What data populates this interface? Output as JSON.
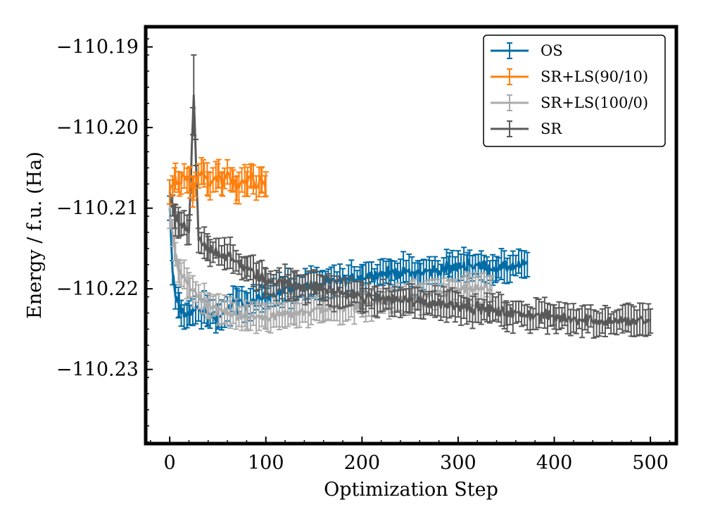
{
  "chart_data": {
    "type": "line",
    "xlabel": "Optimization Step",
    "ylabel": "Energy / f.u. (Ha)",
    "xlim": [
      -25,
      527
    ],
    "ylim": [
      -110.2392,
      -110.1875
    ],
    "xticks": [
      0,
      100,
      200,
      300,
      400,
      500
    ],
    "xtick_labels": [
      "0",
      "100",
      "200",
      "300",
      "400",
      "500"
    ],
    "yticks": [
      -110.19,
      -110.2,
      -110.21,
      -110.22,
      -110.23
    ],
    "ytick_labels": [
      "−110.19",
      "−110.20",
      "−110.21",
      "−110.22",
      "−110.23"
    ],
    "legend_position": "top-right",
    "series": [
      {
        "name": "OS",
        "color": "#006ba4",
        "x": [
          0,
          3,
          6,
          10,
          15,
          20,
          30,
          40,
          50,
          60,
          70,
          80,
          100,
          120,
          150,
          180,
          200,
          230,
          260,
          290,
          310,
          340,
          372
        ],
        "y": [
          -110.21,
          -110.218,
          -110.221,
          -110.222,
          -110.2235,
          -110.223,
          -110.2225,
          -110.223,
          -110.2235,
          -110.2225,
          -110.2215,
          -110.222,
          -110.221,
          -110.22,
          -110.2195,
          -110.219,
          -110.2185,
          -110.218,
          -110.218,
          -110.2175,
          -110.217,
          -110.2175,
          -110.217
        ],
        "err": [
          0.0015,
          0.0015,
          0.0015,
          0.0015,
          0.0015,
          0.0015,
          0.0015,
          0.0015,
          0.0015,
          0.0015,
          0.0015,
          0.0015,
          0.0015,
          0.0015,
          0.0015,
          0.0015,
          0.0015,
          0.0015,
          0.0015,
          0.0015,
          0.0015,
          0.0015,
          0.0015
        ]
      },
      {
        "name": "SR+LS(90/10)",
        "color": "#ff800e",
        "x": [
          0,
          5,
          10,
          15,
          20,
          25,
          30,
          35,
          40,
          45,
          50,
          55,
          60,
          65,
          70,
          75,
          80,
          85,
          90,
          95,
          100
        ],
        "y": [
          -110.208,
          -110.2065,
          -110.207,
          -110.206,
          -110.2065,
          -110.2075,
          -110.206,
          -110.2055,
          -110.207,
          -110.2065,
          -110.206,
          -110.207,
          -110.2055,
          -110.2065,
          -110.2075,
          -110.2065,
          -110.207,
          -110.206,
          -110.2075,
          -110.2065,
          -110.207
        ],
        "err": [
          0.0015,
          0.0015,
          0.0015,
          0.0015,
          0.0015,
          0.0015,
          0.0015,
          0.0015,
          0.0015,
          0.0015,
          0.0015,
          0.0015,
          0.0015,
          0.0015,
          0.0015,
          0.0015,
          0.0015,
          0.0015,
          0.0015,
          0.0015,
          0.0015
        ]
      },
      {
        "name": "SR+LS(100/0)",
        "color": "#ababab",
        "x": [
          0,
          5,
          10,
          20,
          30,
          40,
          60,
          80,
          100,
          130,
          160,
          200,
          230,
          260,
          290,
          310,
          335
        ],
        "y": [
          -110.211,
          -110.215,
          -110.218,
          -110.2195,
          -110.221,
          -110.222,
          -110.223,
          -110.2235,
          -110.2235,
          -110.223,
          -110.2225,
          -110.222,
          -110.2215,
          -110.221,
          -110.2205,
          -110.22,
          -110.22
        ],
        "err": [
          0.0015,
          0.0015,
          0.0015,
          0.0015,
          0.0015,
          0.0015,
          0.0015,
          0.0015,
          0.0015,
          0.0015,
          0.0015,
          0.0015,
          0.0015,
          0.0015,
          0.0015,
          0.0015,
          0.0015
        ]
      },
      {
        "name": "SR",
        "color": "#595959",
        "x": [
          0,
          5,
          10,
          20,
          25,
          30,
          40,
          60,
          80,
          100,
          130,
          160,
          200,
          250,
          300,
          350,
          400,
          450,
          500
        ],
        "y": [
          -110.208,
          -110.211,
          -110.212,
          -110.213,
          -110.196,
          -110.214,
          -110.215,
          -110.216,
          -110.2175,
          -110.219,
          -110.2195,
          -110.22,
          -110.221,
          -110.2215,
          -110.222,
          -110.223,
          -110.2235,
          -110.224,
          -110.224
        ],
        "err": [
          0.0015,
          0.0015,
          0.0015,
          0.0015,
          0.005,
          0.0015,
          0.0015,
          0.0015,
          0.0015,
          0.0015,
          0.0015,
          0.0015,
          0.0015,
          0.0015,
          0.0015,
          0.0015,
          0.0015,
          0.0015,
          0.0015
        ]
      }
    ]
  }
}
